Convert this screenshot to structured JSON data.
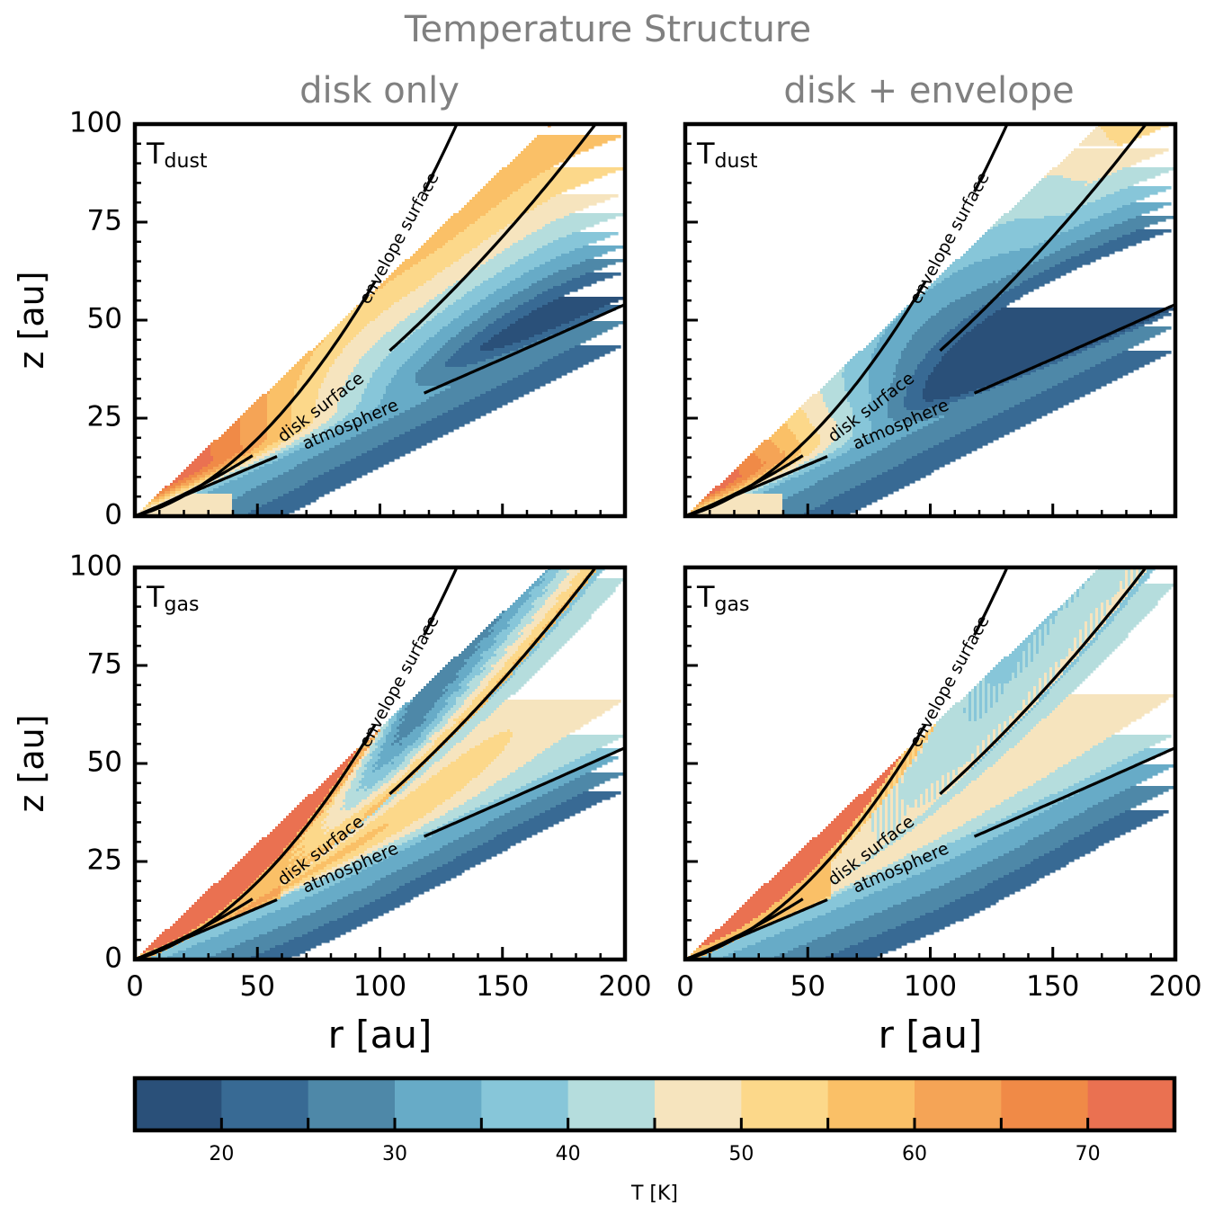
{
  "figure": {
    "suptitle": "Temperature Structure",
    "col_titles": [
      "disk only",
      "disk + envelope"
    ],
    "xlabel": "r [au]",
    "ylabel": "z [au]",
    "title_color": "#808080"
  },
  "chart_data": {
    "type": "heatmap",
    "xlim": [
      0,
      200
    ],
    "ylim": [
      0,
      100
    ],
    "xticks": [
      0,
      50,
      100,
      150,
      200
    ],
    "yticks": [
      0,
      25,
      50,
      75,
      100
    ],
    "grid": false,
    "levels": [
      15,
      20,
      25,
      30,
      35,
      40,
      45,
      50,
      55,
      60,
      65,
      70,
      75
    ],
    "colors": [
      "#2a5079",
      "#386a94",
      "#4e88a8",
      "#67abc7",
      "#87c6d9",
      "#b5dddd",
      "#f6e4be",
      "#fcd88a",
      "#fac067",
      "#f5a456",
      "#f08a47",
      "#ea7151"
    ],
    "colorbar": {
      "label": "T [K]",
      "ticks": [
        20,
        30,
        40,
        50,
        60,
        70
      ],
      "range": [
        15,
        75
      ],
      "placement": "bottom"
    },
    "surfaces": [
      {
        "label": "envelope surface",
        "z_at_r": [
          [
            0,
            0
          ],
          [
            100,
            62
          ],
          [
            152,
            100
          ]
        ]
      },
      {
        "label": "disk surface",
        "z_at_r": [
          [
            0,
            0
          ],
          [
            100,
            40
          ],
          [
            187,
            100
          ]
        ]
      },
      {
        "label": "atmosphere",
        "z_at_r": [
          [
            0,
            0
          ],
          [
            100,
            26
          ],
          [
            200,
            54
          ]
        ]
      }
    ],
    "panels": [
      {
        "id": "dust-disk",
        "row": 0,
        "col": 0,
        "label_main": "T",
        "label_sub": "dust",
        "model": "disk only"
      },
      {
        "id": "dust-env",
        "row": 0,
        "col": 1,
        "label_main": "T",
        "label_sub": "dust",
        "model": "disk + envelope"
      },
      {
        "id": "gas-disk",
        "row": 1,
        "col": 0,
        "label_main": "T",
        "label_sub": "gas",
        "model": "disk only"
      },
      {
        "id": "gas-env",
        "row": 1,
        "col": 1,
        "label_main": "T",
        "label_sub": "gas",
        "model": "disk + envelope"
      }
    ]
  }
}
